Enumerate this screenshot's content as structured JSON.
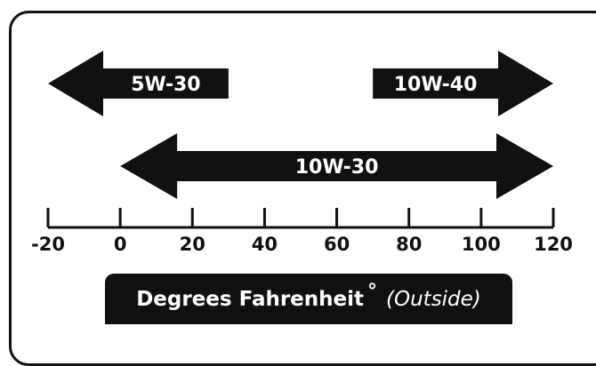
{
  "chart_data": {
    "type": "range-arrows",
    "axis": {
      "min": -20,
      "max": 120,
      "ticks": [
        -20,
        0,
        20,
        40,
        60,
        80,
        100,
        120
      ],
      "tick_labels": [
        "-20",
        "0",
        "20",
        "40",
        "60",
        "80",
        "100",
        "120"
      ]
    },
    "caption": {
      "main": "Degrees Fahrenheit",
      "degree_symbol": "°",
      "sub": "(Outside)"
    },
    "ranges": [
      {
        "label": "5W-30",
        "from": -20,
        "to": 30,
        "open_end": "left"
      },
      {
        "label": "10W-40",
        "from": 70,
        "to": 120,
        "open_end": "right"
      },
      {
        "label": "10W-30",
        "from": 0,
        "to": 120,
        "open_end": "both"
      }
    ],
    "colors": {
      "arrow": "#111111",
      "text": "#ffffff",
      "axis": "#111111"
    }
  }
}
